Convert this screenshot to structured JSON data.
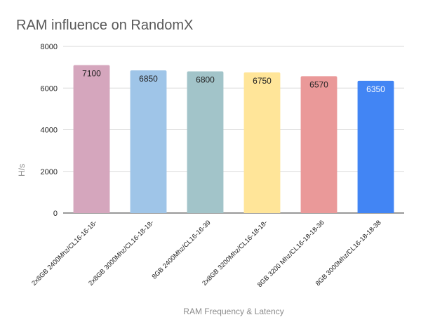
{
  "chart_data": {
    "type": "bar",
    "title": "RAM influence on RandomX",
    "xlabel": "RAM Frequency & Latency",
    "ylabel": "H/s",
    "ylim": [
      0,
      8000
    ],
    "yticks": [
      0,
      2000,
      4000,
      6000,
      8000
    ],
    "grid": true,
    "legend": "none",
    "categories": [
      "2x8GB 2400Mhz/CL16-16-16-",
      "2x8GB 3000Mhz/CL16-18-18-",
      "8GB 2400Mhz/CL16-16-39",
      "2x8GB 3200Mhz/CL16-18-18-",
      "8GB 3200 Mhz/CL16-18-18-36",
      "8GB 3000Mhz/CL16-18-18-38"
    ],
    "values": [
      7100,
      6850,
      6800,
      6750,
      6570,
      6350
    ],
    "bar_colors": [
      "#d5a6bd",
      "#9fc5e8",
      "#a2c4c9",
      "#ffe599",
      "#ea9999",
      "#4285f4"
    ],
    "label_colors": [
      "#222222",
      "#222222",
      "#222222",
      "#222222",
      "#222222",
      "#ffffff"
    ]
  }
}
